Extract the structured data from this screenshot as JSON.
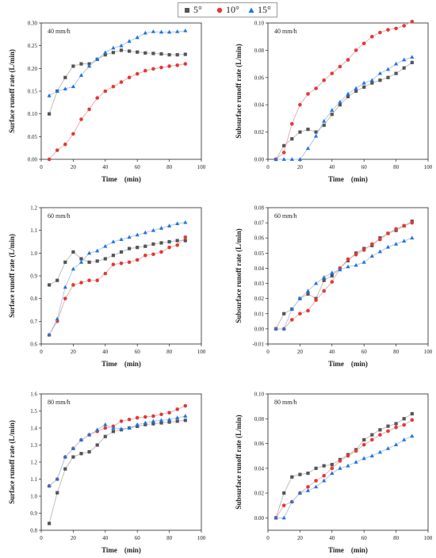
{
  "legend": {
    "entries": [
      {
        "label": "5°",
        "color": "#555555",
        "marker": "square"
      },
      {
        "label": "10°",
        "color": "#e53935",
        "marker": "circle"
      },
      {
        "label": "15°",
        "color": "#1e74e0",
        "marker": "triangle"
      }
    ]
  },
  "colors": {
    "line_5": "#b9b9b9",
    "line_10": "#e8a8a8",
    "line_15": "#a8c3ea"
  },
  "chart_data": [
    {
      "type": "line",
      "annotation": "40 mm/h",
      "xlabel": "Time　(min)",
      "ylabel": "Surface runoff rate (L/min)",
      "xlim": [
        0,
        100
      ],
      "ylim": [
        0,
        0.3
      ],
      "xticks": [
        "0",
        "20",
        "40",
        "60",
        "80",
        "100"
      ],
      "yticks": [
        "0.00",
        "0.05",
        "0.10",
        "0.15",
        "0.20",
        "0.25",
        "0.30"
      ],
      "x": [
        5,
        10,
        15,
        20,
        25,
        30,
        35,
        40,
        45,
        50,
        55,
        60,
        65,
        70,
        75,
        80,
        85,
        90
      ],
      "series": [
        {
          "name": "5°",
          "values": [
            0.1,
            0.15,
            0.18,
            0.205,
            0.21,
            0.21,
            0.22,
            0.23,
            0.235,
            0.24,
            0.238,
            0.236,
            0.234,
            0.233,
            0.232,
            0.23,
            0.23,
            0.231
          ]
        },
        {
          "name": "10°",
          "values": [
            0.0,
            0.02,
            0.033,
            0.056,
            0.088,
            0.11,
            0.135,
            0.15,
            0.16,
            0.17,
            0.18,
            0.188,
            0.195,
            0.199,
            0.202,
            0.205,
            0.207,
            0.21
          ]
        },
        {
          "name": "15°",
          "values": [
            0.14,
            0.15,
            0.155,
            0.16,
            0.185,
            0.205,
            0.22,
            0.235,
            0.245,
            0.25,
            0.26,
            0.268,
            0.278,
            0.281,
            0.28,
            0.28,
            0.281,
            0.283
          ]
        }
      ]
    },
    {
      "type": "line",
      "annotation": "40 mm/h",
      "xlabel": "Time　(min)",
      "ylabel": "Subsurface runoff rate (L/min)",
      "xlim": [
        0,
        100
      ],
      "ylim": [
        0,
        0.1
      ],
      "xticks": [
        "0",
        "20",
        "40",
        "60",
        "80",
        "100"
      ],
      "yticks": [
        "0.00",
        "0.02",
        "0.04",
        "0.06",
        "0.08",
        "0.10"
      ],
      "x": [
        5,
        10,
        15,
        20,
        25,
        30,
        35,
        40,
        45,
        50,
        55,
        60,
        65,
        70,
        75,
        80,
        85,
        90
      ],
      "series": [
        {
          "name": "5°",
          "values": [
            0.0,
            0.01,
            0.015,
            0.02,
            0.022,
            0.02,
            0.025,
            0.033,
            0.04,
            0.046,
            0.05,
            0.053,
            0.056,
            0.058,
            0.06,
            0.063,
            0.067,
            0.071
          ]
        },
        {
          "name": "10°",
          "values": [
            0.0,
            0.005,
            0.026,
            0.04,
            0.048,
            0.052,
            0.058,
            0.063,
            0.068,
            0.073,
            0.08,
            0.085,
            0.09,
            0.093,
            0.095,
            0.096,
            0.098,
            0.101
          ]
        },
        {
          "name": "15°",
          "values": [
            0.0,
            0.0,
            0.0,
            0.0,
            0.008,
            0.017,
            0.028,
            0.036,
            0.042,
            0.048,
            0.052,
            0.056,
            0.058,
            0.063,
            0.066,
            0.07,
            0.073,
            0.075
          ]
        }
      ]
    },
    {
      "type": "line",
      "annotation": "60 mm/h",
      "xlabel": "Time　(min)",
      "ylabel": "Surface runoff rate (L/min)",
      "xlim": [
        0,
        100
      ],
      "ylim": [
        0.6,
        1.2
      ],
      "xticks": [
        "0",
        "20",
        "40",
        "60",
        "80",
        "100"
      ],
      "yticks": [
        "0.6",
        "0.7",
        "0.8",
        "0.9",
        "1.0",
        "1.1",
        "1.2"
      ],
      "x": [
        5,
        10,
        15,
        20,
        25,
        30,
        35,
        40,
        45,
        50,
        55,
        60,
        65,
        70,
        75,
        80,
        85,
        90
      ],
      "series": [
        {
          "name": "5°",
          "values": [
            0.86,
            0.88,
            0.96,
            1.005,
            0.975,
            0.96,
            0.965,
            0.975,
            0.99,
            1.005,
            1.02,
            1.025,
            1.03,
            1.04,
            1.045,
            1.05,
            1.055,
            1.055
          ]
        },
        {
          "name": "10°",
          "values": [
            0.64,
            0.7,
            0.8,
            0.86,
            0.87,
            0.88,
            0.88,
            0.91,
            0.95,
            0.955,
            0.96,
            0.97,
            0.99,
            0.995,
            1.005,
            1.025,
            1.035,
            1.07
          ]
        },
        {
          "name": "15°",
          "values": [
            0.64,
            0.71,
            0.85,
            0.93,
            0.96,
            1.0,
            1.01,
            1.03,
            1.05,
            1.06,
            1.07,
            1.08,
            1.09,
            1.1,
            1.11,
            1.12,
            1.13,
            1.135
          ]
        }
      ]
    },
    {
      "type": "line",
      "annotation": "60 mm/h",
      "xlabel": "Time　(min)",
      "ylabel": "Subsurface runoff rate (L/min)",
      "xlim": [
        0,
        100
      ],
      "ylim": [
        -0.01,
        0.08
      ],
      "xticks": [
        "0",
        "20",
        "40",
        "60",
        "80",
        "100"
      ],
      "yticks": [
        "-0.01",
        "0.00",
        "0.01",
        "0.02",
        "0.03",
        "0.04",
        "0.05",
        "0.06",
        "0.07",
        "0.08"
      ],
      "x": [
        5,
        10,
        15,
        20,
        25,
        30,
        35,
        40,
        45,
        50,
        55,
        60,
        65,
        70,
        75,
        80,
        85,
        90
      ],
      "series": [
        {
          "name": "5°",
          "values": [
            0.0,
            0.01,
            0.013,
            0.02,
            0.023,
            0.02,
            0.032,
            0.035,
            0.04,
            0.045,
            0.05,
            0.053,
            0.055,
            0.06,
            0.063,
            0.065,
            0.068,
            0.071
          ]
        },
        {
          "name": "10°",
          "values": [
            0.0,
            0.0,
            0.006,
            0.01,
            0.012,
            0.019,
            0.025,
            0.031,
            0.04,
            0.046,
            0.049,
            0.052,
            0.056,
            0.059,
            0.063,
            0.066,
            0.068,
            0.07
          ]
        },
        {
          "name": "15°",
          "values": [
            0.0,
            0.0,
            0.013,
            0.02,
            0.025,
            0.03,
            0.034,
            0.037,
            0.039,
            0.041,
            0.042,
            0.044,
            0.048,
            0.051,
            0.054,
            0.056,
            0.058,
            0.06
          ]
        }
      ]
    },
    {
      "type": "line",
      "annotation": "80 mm/h",
      "xlabel": "Time　(min)",
      "ylabel": "Surface runoff rate (L/min)",
      "xlim": [
        0,
        100
      ],
      "ylim": [
        0.8,
        1.6
      ],
      "xticks": [
        "0",
        "20",
        "40",
        "60",
        "80",
        "100"
      ],
      "yticks": [
        "0.8",
        "0.9",
        "1.0",
        "1.1",
        "1.2",
        "1.3",
        "1.4",
        "1.5",
        "1.6"
      ],
      "x": [
        5,
        10,
        15,
        20,
        25,
        30,
        35,
        40,
        45,
        50,
        55,
        60,
        65,
        70,
        75,
        80,
        85,
        90
      ],
      "series": [
        {
          "name": "5°",
          "values": [
            0.84,
            1.02,
            1.16,
            1.23,
            1.25,
            1.26,
            1.3,
            1.35,
            1.38,
            1.39,
            1.4,
            1.41,
            1.42,
            1.425,
            1.43,
            1.435,
            1.44,
            1.445
          ]
        },
        {
          "name": "10°",
          "values": [
            1.06,
            1.1,
            1.23,
            1.28,
            1.33,
            1.36,
            1.38,
            1.4,
            1.41,
            1.44,
            1.45,
            1.46,
            1.465,
            1.47,
            1.48,
            1.49,
            1.51,
            1.53
          ]
        },
        {
          "name": "15°",
          "values": [
            1.06,
            1.1,
            1.23,
            1.28,
            1.33,
            1.36,
            1.39,
            1.42,
            1.4,
            1.395,
            1.4,
            1.42,
            1.43,
            1.44,
            1.445,
            1.45,
            1.46,
            1.47
          ]
        }
      ]
    },
    {
      "type": "line",
      "annotation": "80 mm/h",
      "xlabel": "Time　(min)",
      "ylabel": "Subsurface runoff rate (L/min)",
      "xlim": [
        0,
        100
      ],
      "ylim": [
        -0.01,
        0.1
      ],
      "xticks": [
        "0",
        "20",
        "40",
        "60",
        "80",
        "100"
      ],
      "yticks": [
        "0.00",
        "0.02",
        "0.04",
        "0.06",
        "0.08",
        "0.10"
      ],
      "x": [
        5,
        10,
        15,
        20,
        25,
        30,
        35,
        40,
        45,
        50,
        55,
        60,
        65,
        70,
        75,
        80,
        85,
        90
      ],
      "series": [
        {
          "name": "5°",
          "values": [
            0.0,
            0.02,
            0.033,
            0.035,
            0.036,
            0.04,
            0.042,
            0.043,
            0.047,
            0.051,
            0.055,
            0.063,
            0.067,
            0.071,
            0.074,
            0.076,
            0.08,
            0.084
          ]
        },
        {
          "name": "10°",
          "values": [
            0.0,
            0.01,
            0.013,
            0.02,
            0.025,
            0.03,
            0.034,
            0.04,
            0.046,
            0.05,
            0.054,
            0.059,
            0.063,
            0.067,
            0.07,
            0.073,
            0.075,
            0.079
          ]
        },
        {
          "name": "15°",
          "values": [
            0.0,
            0.0,
            0.013,
            0.02,
            0.022,
            0.025,
            0.03,
            0.036,
            0.04,
            0.042,
            0.045,
            0.048,
            0.05,
            0.053,
            0.056,
            0.059,
            0.063,
            0.066
          ]
        }
      ]
    }
  ]
}
